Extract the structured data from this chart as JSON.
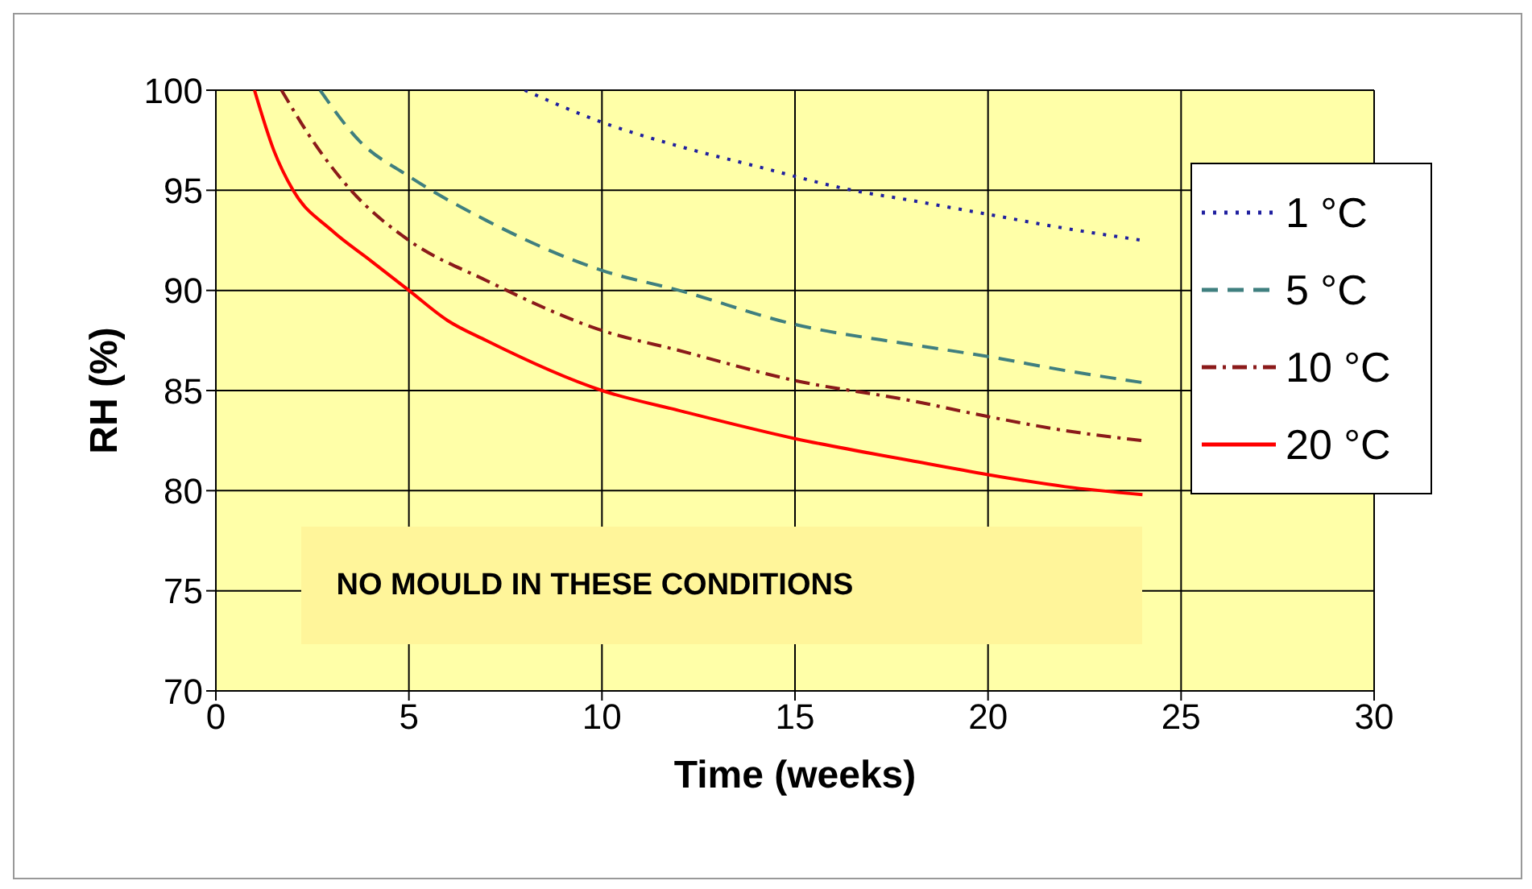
{
  "chart_data": {
    "type": "line",
    "xlabel": "Time (weeks)",
    "ylabel": "RH (%)",
    "xlim": [
      0,
      30
    ],
    "xticks": [
      0,
      5,
      10,
      15,
      20,
      25,
      30
    ],
    "ylim": [
      70,
      100
    ],
    "yticks": [
      70,
      75,
      80,
      85,
      90,
      95,
      100
    ],
    "grid": true,
    "legend": "top right",
    "marker": "none",
    "annotations": [
      "NO MOULD IN THESE CONDITIONS"
    ],
    "series": [
      {
        "name": "1 °C",
        "color": "#1f1f9f",
        "line_style": "dotted",
        "x": [
          8,
          10,
          12,
          14,
          16.5,
          18,
          20,
          22,
          24
        ],
        "values": [
          100,
          98.4,
          97.2,
          96.2,
          95,
          94.5,
          93.8,
          93.1,
          92.5
        ]
      },
      {
        "name": "5 °C",
        "color": "#3f7f7f",
        "line_style": "dashed",
        "x": [
          2.7,
          3.7,
          5,
          7,
          10,
          12,
          15,
          18,
          20,
          22,
          24
        ],
        "values": [
          100,
          97.5,
          95.7,
          93.5,
          91,
          90,
          88.3,
          87.3,
          86.7,
          86,
          85.4
        ]
      },
      {
        "name": "10 °C",
        "color": "#8b1a1a",
        "line_style": "dashdot",
        "x": [
          1.7,
          2.5,
          3.5,
          5,
          7,
          10,
          12,
          15,
          18,
          20,
          22,
          24
        ],
        "values": [
          100,
          97.5,
          95,
          92.5,
          90.5,
          88,
          87,
          85.5,
          84.5,
          83.7,
          83,
          82.5
        ]
      },
      {
        "name": "20 °C",
        "color": "#ff0000",
        "line_style": "solid",
        "x": [
          1,
          1.5,
          2,
          3,
          4,
          5,
          6,
          7,
          10,
          12,
          15,
          18,
          20,
          22,
          24
        ],
        "values": [
          100,
          97,
          95,
          93,
          91.5,
          90,
          88.5,
          87.5,
          85,
          84,
          82.6,
          81.5,
          80.8,
          80.2,
          79.8
        ]
      }
    ]
  }
}
